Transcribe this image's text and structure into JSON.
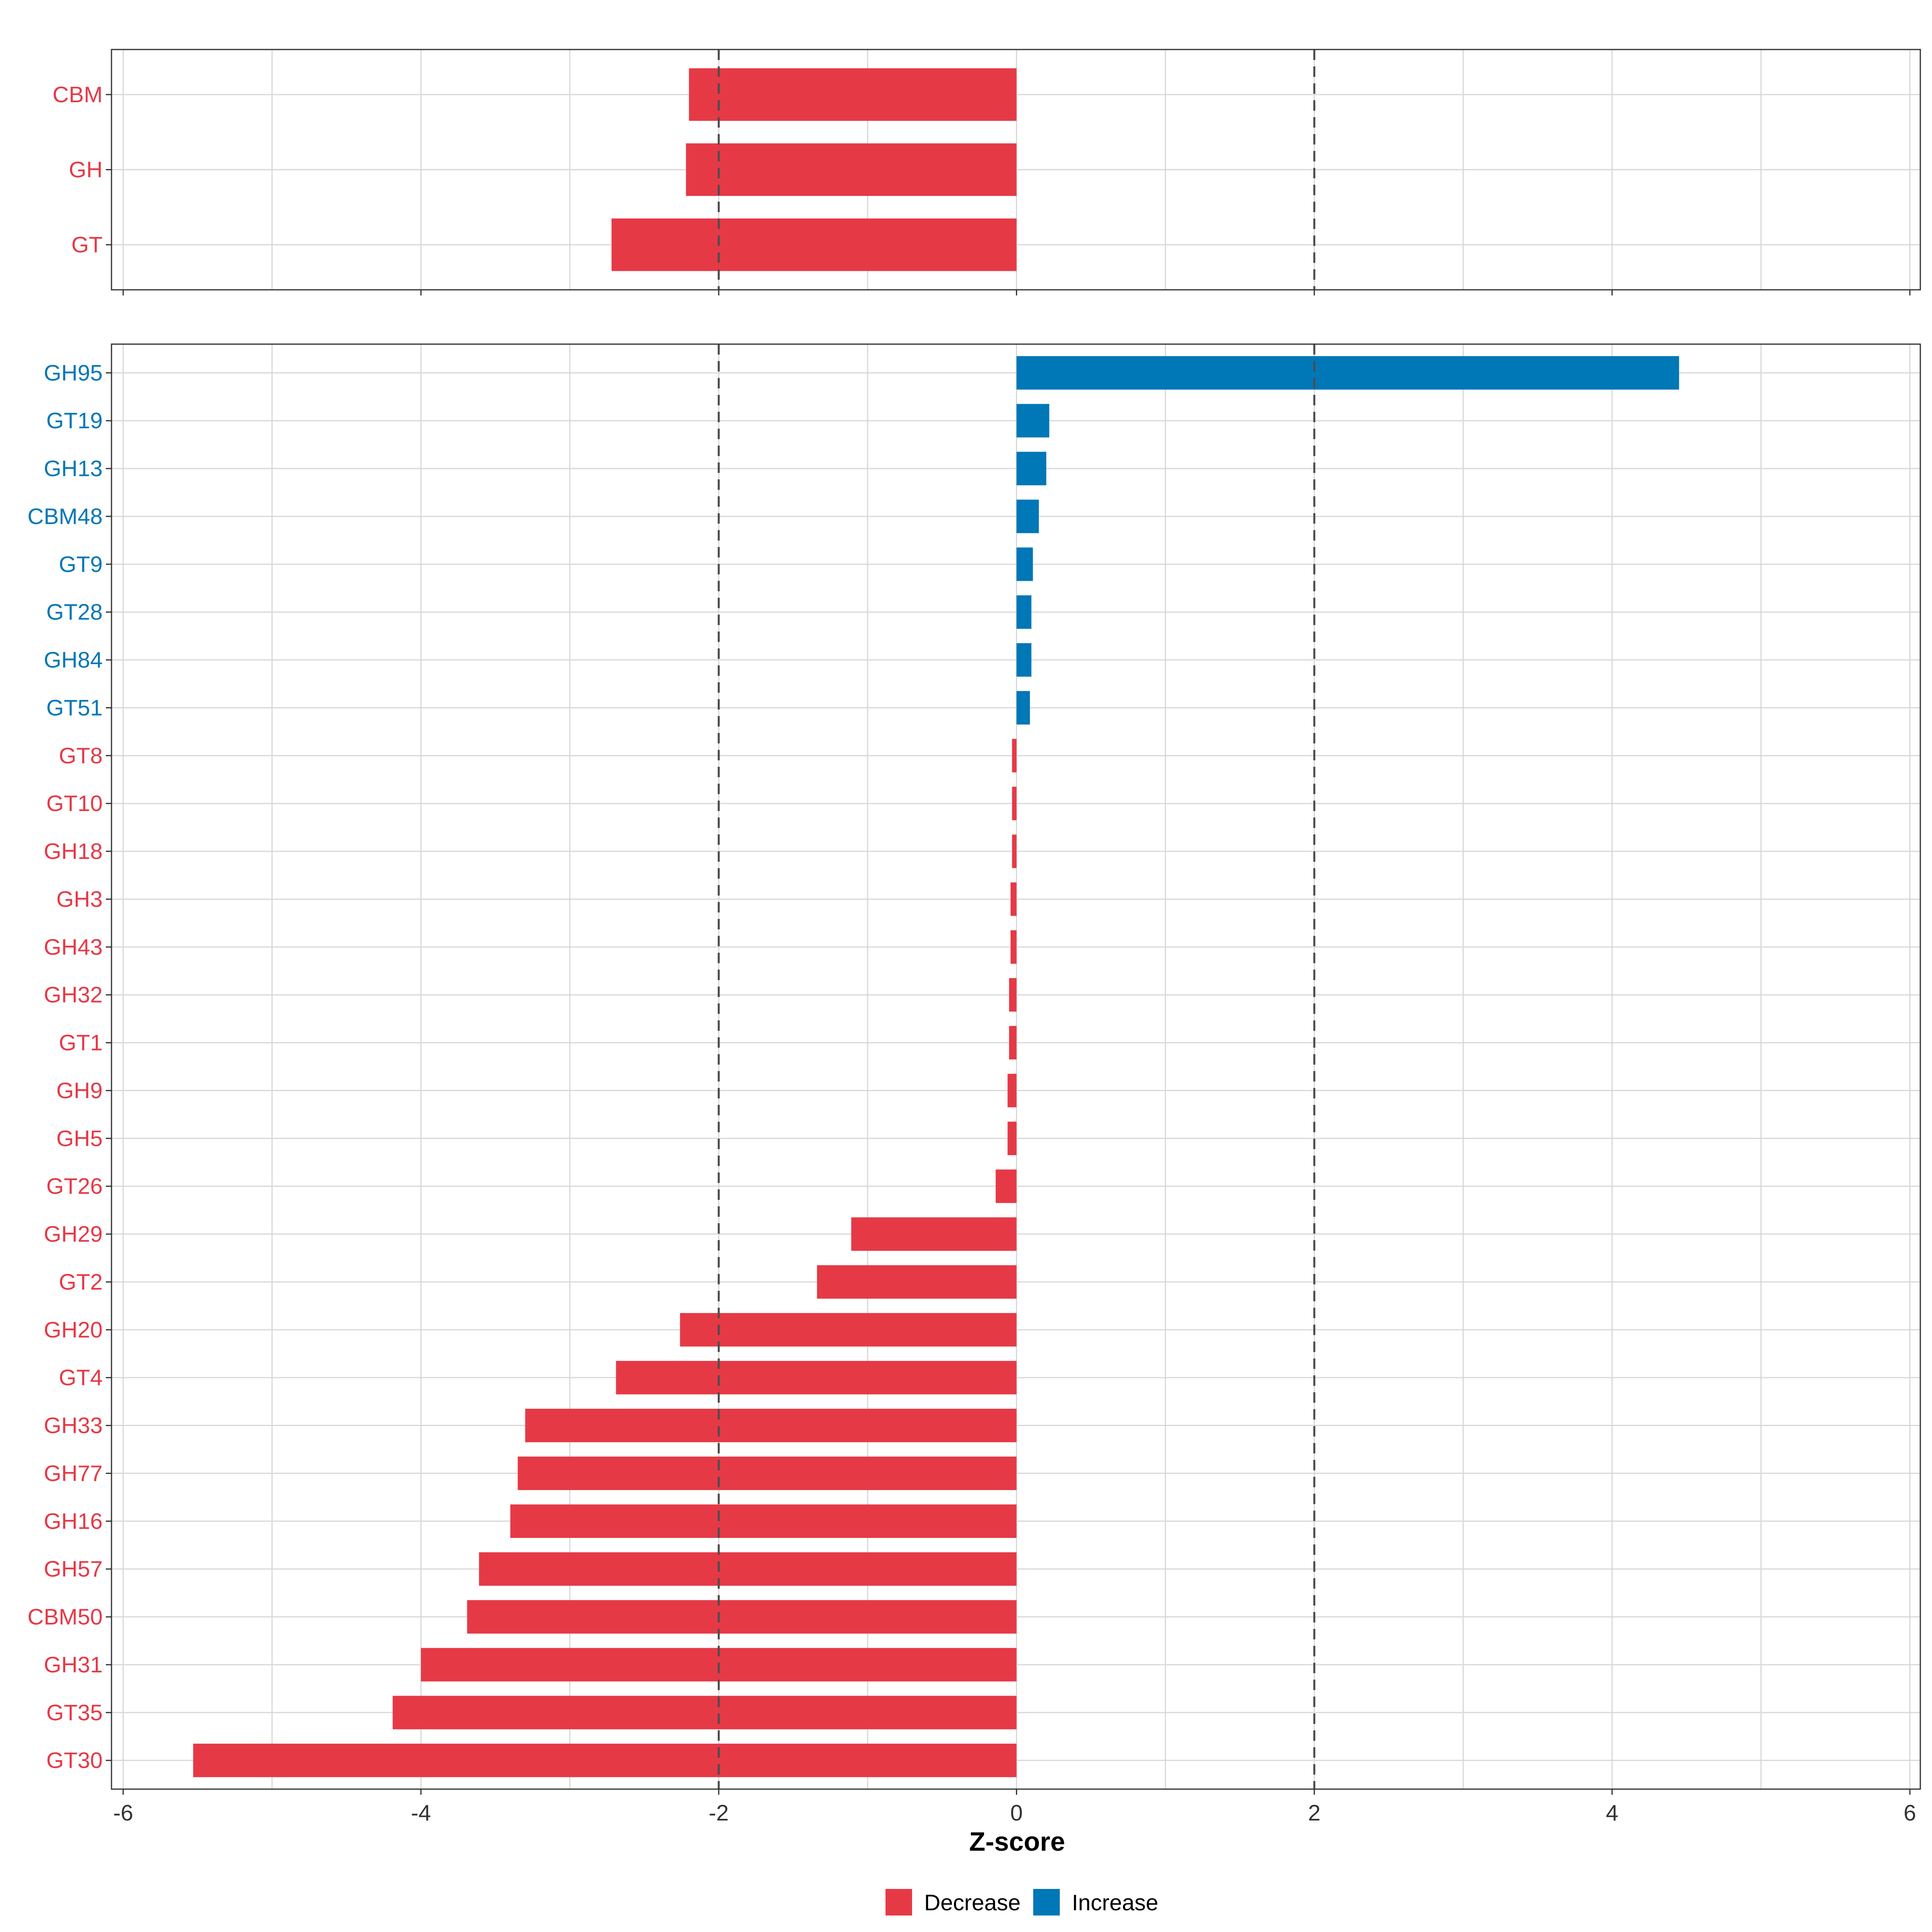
{
  "colors": {
    "decrease": "#e63946",
    "increase": "#0077b6",
    "grid": "#d9d9d9",
    "threshold": "#4d4d4d",
    "axis": "#333333"
  },
  "legend": {
    "decrease_label": "Decrease",
    "increase_label": "Increase"
  },
  "chart_data": [
    {
      "type": "bar",
      "orientation": "horizontal",
      "panel": "top",
      "categories": [
        "CBM",
        "GH",
        "GT"
      ],
      "values": [
        -2.2,
        -2.22,
        -2.72
      ],
      "directions": [
        "Decrease",
        "Decrease",
        "Decrease"
      ],
      "xlim": [
        -6,
        6
      ],
      "threshold_lines": [
        -2,
        2
      ],
      "grid": true
    },
    {
      "type": "bar",
      "orientation": "horizontal",
      "panel": "bottom",
      "categories": [
        "GH95",
        "GT19",
        "GH13",
        "CBM48",
        "GT9",
        "GT28",
        "GH84",
        "GT51",
        "GT8",
        "GT10",
        "GH18",
        "GH3",
        "GH43",
        "GH32",
        "GT1",
        "GH9",
        "GH5",
        "GT26",
        "GH29",
        "GT2",
        "GH20",
        "GT4",
        "GH33",
        "GH77",
        "GH16",
        "GH57",
        "CBM50",
        "GH31",
        "GT35",
        "GT30"
      ],
      "values": [
        4.45,
        0.22,
        0.2,
        0.15,
        0.11,
        0.1,
        0.1,
        0.09,
        -0.03,
        -0.03,
        -0.03,
        -0.04,
        -0.04,
        -0.05,
        -0.05,
        -0.06,
        -0.06,
        -0.14,
        -1.11,
        -1.34,
        -2.26,
        -2.69,
        -3.3,
        -3.35,
        -3.4,
        -3.61,
        -3.69,
        -4.0,
        -4.19,
        -5.53
      ],
      "directions": [
        "Increase",
        "Increase",
        "Increase",
        "Increase",
        "Increase",
        "Increase",
        "Increase",
        "Increase",
        "Decrease",
        "Decrease",
        "Decrease",
        "Decrease",
        "Decrease",
        "Decrease",
        "Decrease",
        "Decrease",
        "Decrease",
        "Decrease",
        "Decrease",
        "Decrease",
        "Decrease",
        "Decrease",
        "Decrease",
        "Decrease",
        "Decrease",
        "Decrease",
        "Decrease",
        "Decrease",
        "Decrease",
        "Decrease"
      ],
      "xlim": [
        -6,
        6
      ],
      "xticks": [
        -6,
        -4,
        -2,
        0,
        2,
        4,
        6
      ],
      "xlabel": "Z-score",
      "threshold_lines": [
        -2,
        2
      ],
      "grid": true
    }
  ]
}
